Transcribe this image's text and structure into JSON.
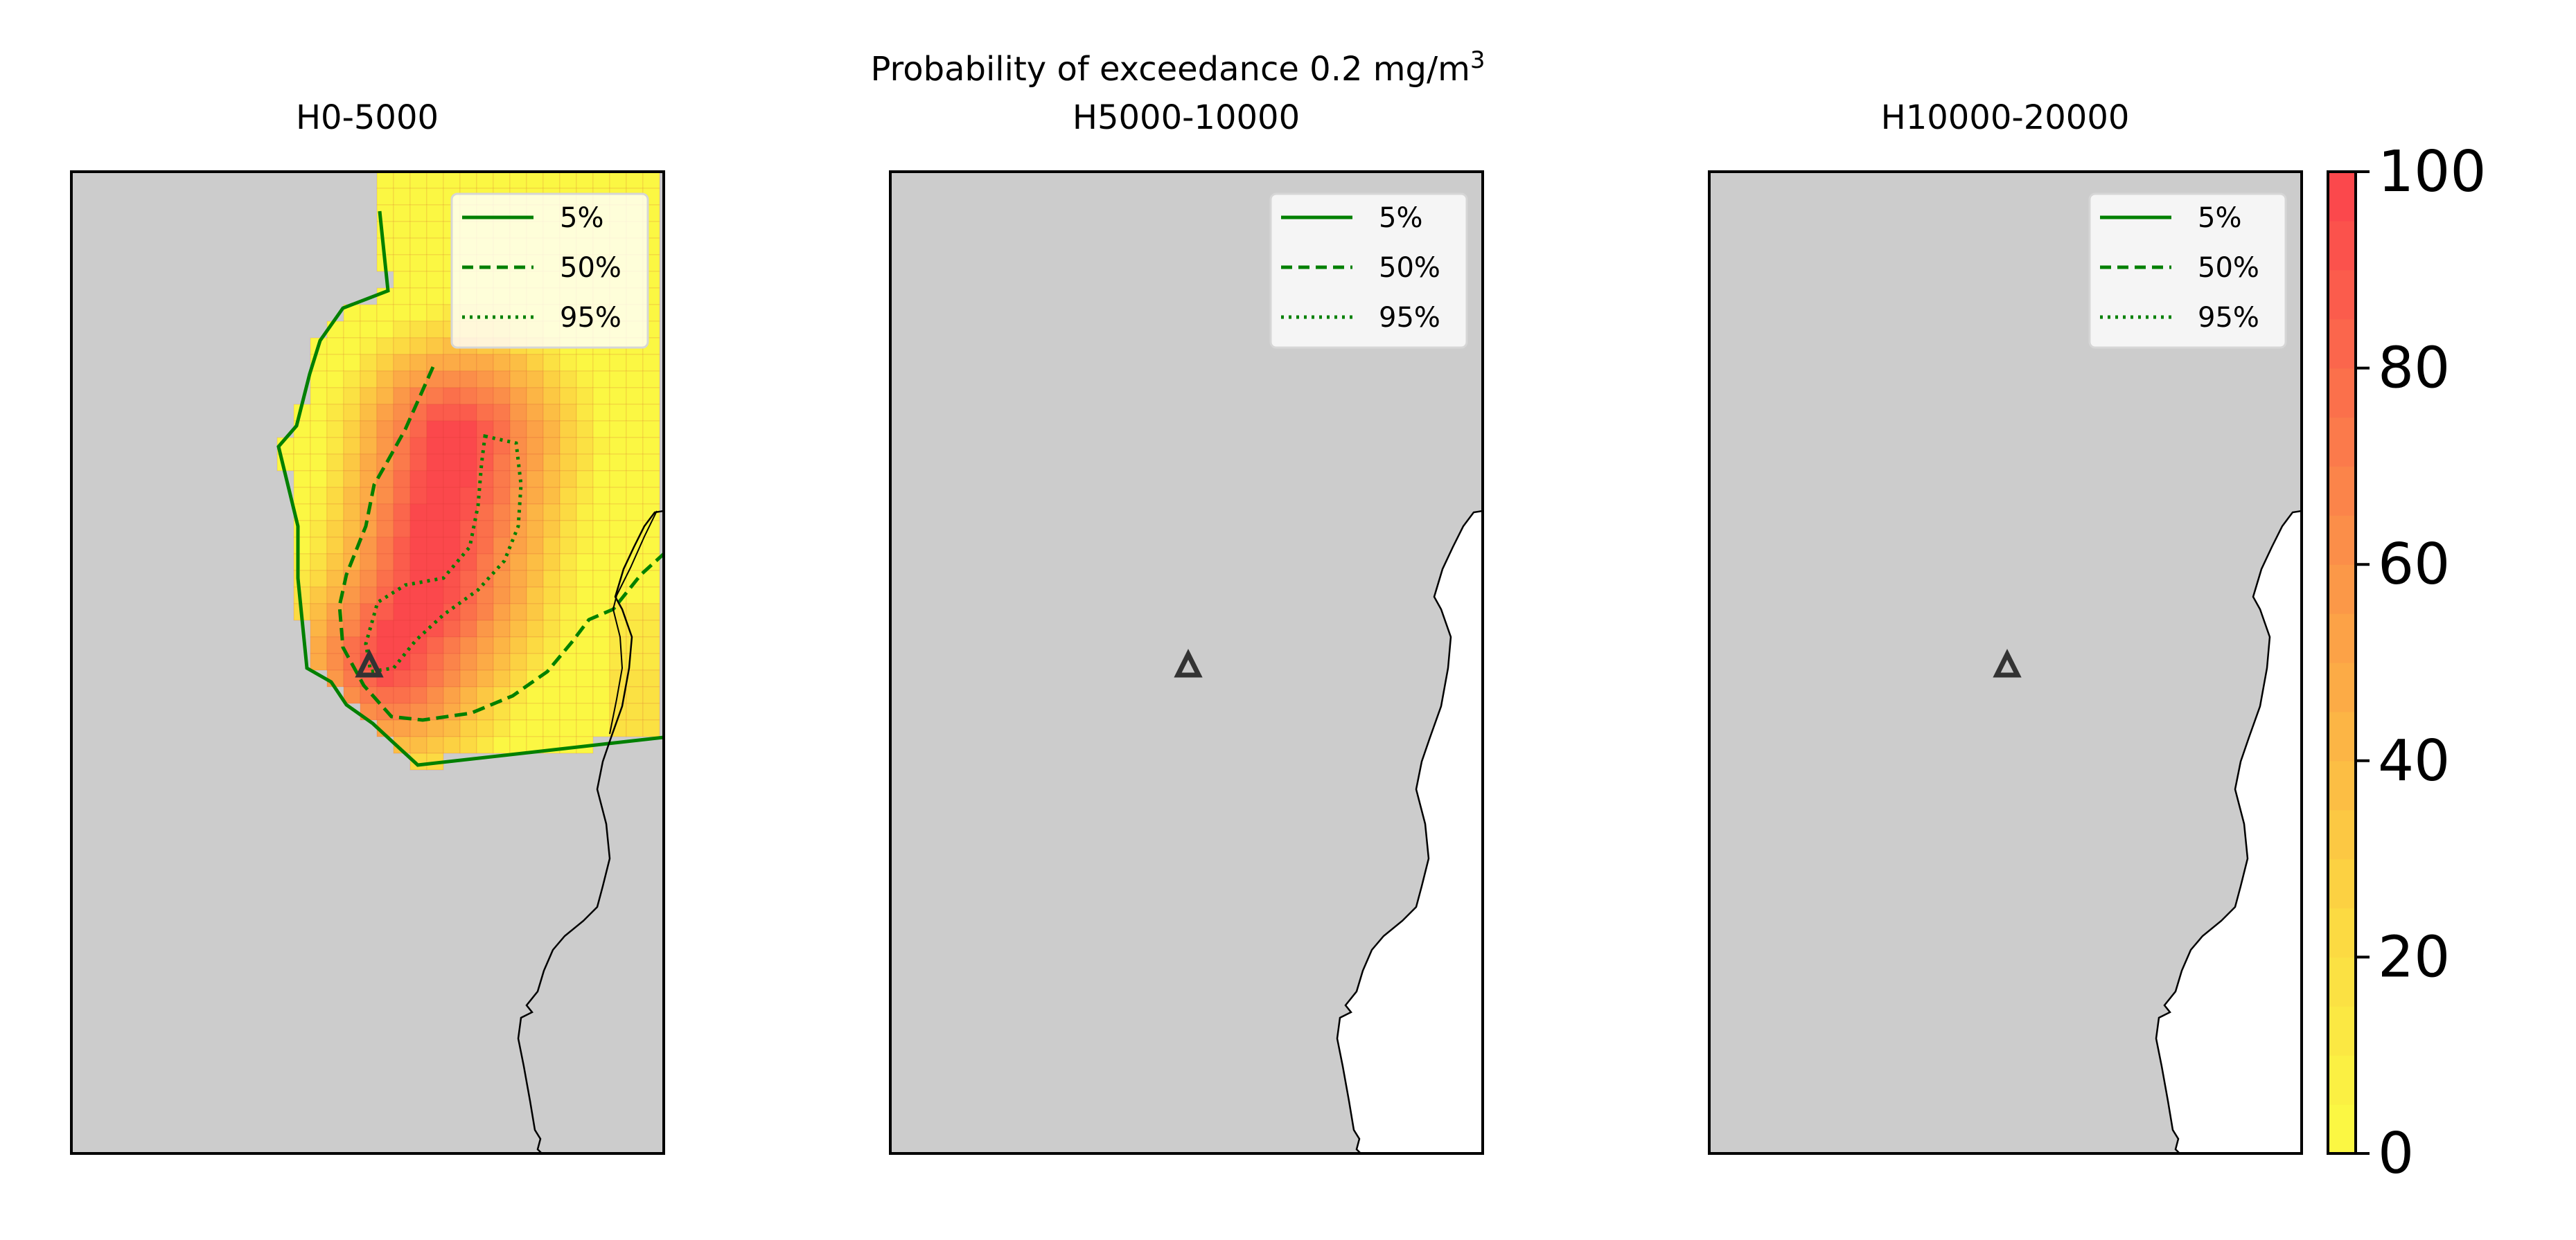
{
  "figure": {
    "suptitle_prefix": "Probability of exceedance 0.2 mg/m",
    "suptitle_sup": "3"
  },
  "chart_data": [
    {
      "type": "heatmap",
      "title": "H0-5000",
      "legend": {
        "placement": "top-right",
        "entries": [
          {
            "label": "5%",
            "style": "solid"
          },
          {
            "label": "50%",
            "style": "dashed"
          },
          {
            "label": "95%",
            "style": "dotted"
          }
        ]
      },
      "has_exceedance": true,
      "source_marker": "triangle"
    },
    {
      "type": "heatmap",
      "title": "H5000-10000",
      "legend": {
        "placement": "top-right",
        "entries": [
          {
            "label": "5%",
            "style": "solid"
          },
          {
            "label": "50%",
            "style": "dashed"
          },
          {
            "label": "95%",
            "style": "dotted"
          }
        ]
      },
      "has_exceedance": false,
      "source_marker": "triangle"
    },
    {
      "type": "heatmap",
      "title": "H10000-20000",
      "legend": {
        "placement": "top-right",
        "entries": [
          {
            "label": "5%",
            "style": "solid"
          },
          {
            "label": "50%",
            "style": "dashed"
          },
          {
            "label": "95%",
            "style": "dotted"
          }
        ]
      },
      "has_exceedance": false,
      "source_marker": "triangle"
    }
  ],
  "colorbar": {
    "range": [
      0,
      100
    ],
    "ticks": [
      0,
      20,
      40,
      60,
      80,
      100
    ],
    "levels": 20,
    "colors": [
      "#fbf743",
      "#fbf043",
      "#fbe843",
      "#fbe143",
      "#fcda42",
      "#fcd142",
      "#fcc843",
      "#fcbe44",
      "#fcb545",
      "#fcab46",
      "#fca247",
      "#fb9848",
      "#fb8e49",
      "#fb844a",
      "#fb7a4b",
      "#fb704b",
      "#fb664c",
      "#fb5c4c",
      "#fb524c",
      "#fb484c"
    ]
  },
  "colors": {
    "land": "#cccccc",
    "sea": "#ffffff",
    "contour": "#008000",
    "marker": "#333333"
  }
}
